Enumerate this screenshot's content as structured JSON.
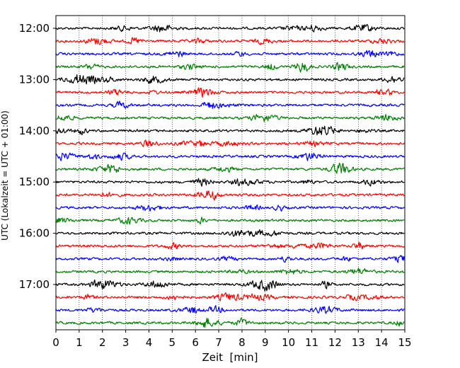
{
  "chart_data": {
    "type": "line",
    "title": "",
    "xlabel": "Zeit  [min]",
    "ylabel": "UTC (Lokalzeit = UTC + 01:00)",
    "xlim": [
      0,
      15
    ],
    "x_ticks": [
      "0",
      "1",
      "2",
      "3",
      "4",
      "5",
      "6",
      "7",
      "8",
      "9",
      "10",
      "11",
      "12",
      "13",
      "14",
      "15"
    ],
    "y_ticks": [
      "12:00",
      "13:00",
      "14:00",
      "15:00",
      "16:00",
      "17:00"
    ],
    "grid": "vertical dotted",
    "traces_per_hour": 4,
    "trace_count": 24,
    "trace_colors": [
      "#000000",
      "#ff0000",
      "#0000ff",
      "#007f00"
    ],
    "series": [
      {
        "start": "12:00",
        "color": "#000000"
      },
      {
        "start": "12:15",
        "color": "#ff0000"
      },
      {
        "start": "12:30",
        "color": "#0000ff"
      },
      {
        "start": "12:45",
        "color": "#007f00"
      },
      {
        "start": "13:00",
        "color": "#000000"
      },
      {
        "start": "13:15",
        "color": "#ff0000"
      },
      {
        "start": "13:30",
        "color": "#0000ff"
      },
      {
        "start": "13:45",
        "color": "#007f00"
      },
      {
        "start": "14:00",
        "color": "#000000"
      },
      {
        "start": "14:15",
        "color": "#ff0000"
      },
      {
        "start": "14:30",
        "color": "#0000ff"
      },
      {
        "start": "14:45",
        "color": "#007f00"
      },
      {
        "start": "15:00",
        "color": "#000000"
      },
      {
        "start": "15:15",
        "color": "#ff0000"
      },
      {
        "start": "15:30",
        "color": "#0000ff"
      },
      {
        "start": "15:45",
        "color": "#007f00"
      },
      {
        "start": "16:00",
        "color": "#000000"
      },
      {
        "start": "16:15",
        "color": "#ff0000"
      },
      {
        "start": "16:30",
        "color": "#0000ff"
      },
      {
        "start": "16:45",
        "color": "#007f00"
      },
      {
        "start": "17:00",
        "color": "#000000"
      },
      {
        "start": "17:15",
        "color": "#ff0000"
      },
      {
        "start": "17:30",
        "color": "#0000ff"
      },
      {
        "start": "17:45",
        "color": "#007f00"
      }
    ]
  }
}
